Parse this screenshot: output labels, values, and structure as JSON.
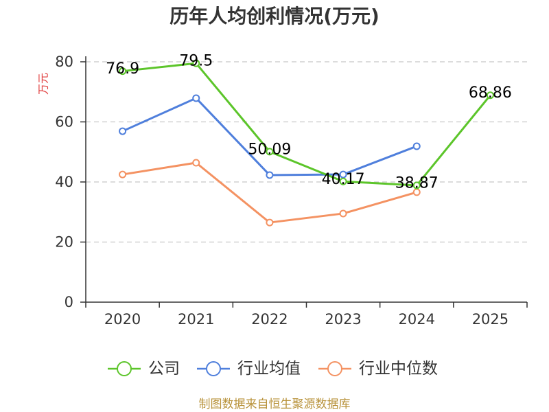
{
  "chart_data": {
    "type": "line",
    "title": "历年人均创利情况(万元)",
    "xlabel": "",
    "ylabel": "万元",
    "categories": [
      "2020",
      "2021",
      "2022",
      "2023",
      "2024",
      "2025"
    ],
    "ylim": [
      0,
      80
    ],
    "yticks": [
      0,
      20,
      40,
      60,
      80
    ],
    "grid": true,
    "legend_position": "bottom",
    "series": [
      {
        "name": "公司",
        "color": "#5cc52a",
        "values": [
          76.9,
          79.5,
          50.09,
          40.17,
          38.87,
          68.86
        ],
        "data_labels": [
          "76.9",
          "79.5",
          "50.09",
          "40.17",
          "38.87",
          "68.86"
        ]
      },
      {
        "name": "行业均值",
        "color": "#4f7fdc",
        "values": [
          56.9,
          67.9,
          42.3,
          42.5,
          51.9,
          null
        ]
      },
      {
        "name": "行业中位数",
        "color": "#f49262",
        "values": [
          42.5,
          46.4,
          26.5,
          29.5,
          36.6,
          null
        ]
      }
    ]
  },
  "footer": "制图数据来自恒生聚源数据库",
  "colors": {
    "ylabel": "#e03c3c",
    "footer": "#b8923a",
    "grid": "#c8c8c8"
  }
}
